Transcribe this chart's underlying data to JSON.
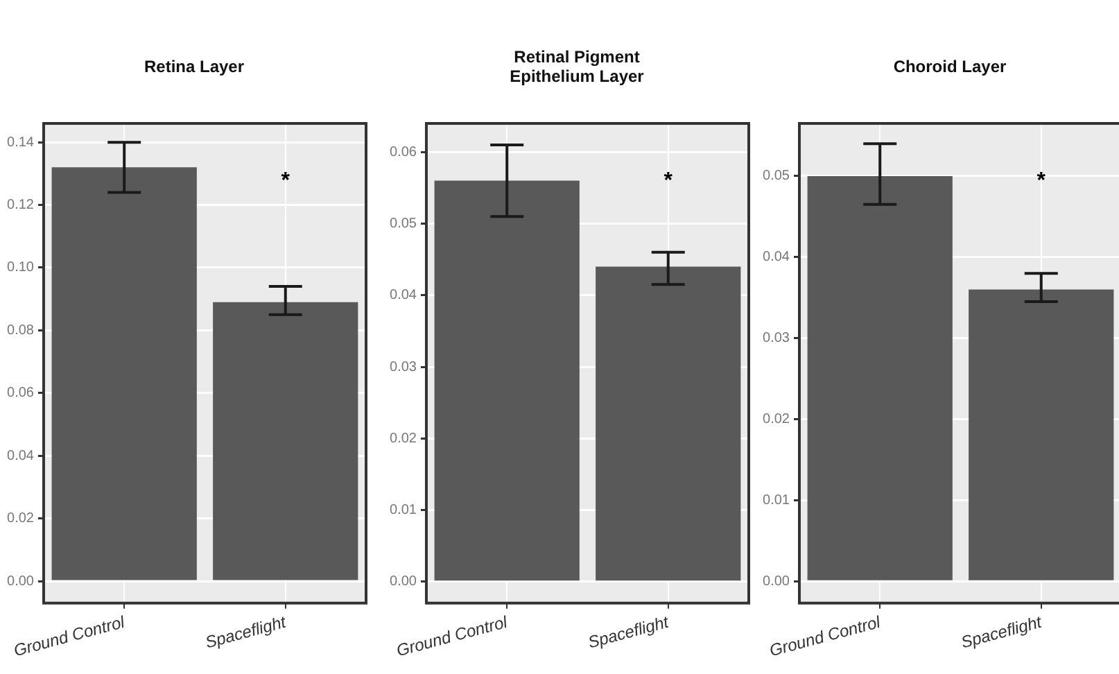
{
  "chart_data": [
    {
      "type": "bar",
      "title": "Retina Layer",
      "categories": [
        "Ground Control",
        "Spaceflight"
      ],
      "values": [
        0.132,
        0.089
      ],
      "color": "#595959",
      "errors": [
        [
          0.124,
          0.14
        ],
        [
          0.085,
          0.094
        ]
      ],
      "ylim": [
        -0.007,
        0.146
      ],
      "yticks": [
        {
          "value": 0,
          "label": "0.00"
        },
        {
          "value": 0.02,
          "label": "0.02"
        },
        {
          "value": 0.04,
          "label": "0.04"
        },
        {
          "value": 0.06,
          "label": "0.06"
        },
        {
          "value": 0.08,
          "label": "0.08"
        },
        {
          "value": 0.1,
          "label": "0.10"
        },
        {
          "value": 0.12,
          "label": "0.12"
        },
        {
          "value": 0.14,
          "label": "0.14"
        }
      ],
      "grid": true,
      "annotations": [
        "*"
      ]
    },
    {
      "type": "bar",
      "title": "Retinal Pigment Epithelium Layer",
      "categories": [
        "Ground Control",
        "Spaceflight"
      ],
      "values": [
        0.056,
        0.044
      ],
      "color": "#595959",
      "errors": [
        [
          0.051,
          0.061
        ],
        [
          0.0415,
          0.046
        ]
      ],
      "ylim": [
        -0.003,
        0.064
      ],
      "yticks": [
        {
          "value": 0,
          "label": "0.00"
        },
        {
          "value": 0.01,
          "label": "0.01"
        },
        {
          "value": 0.02,
          "label": "0.02"
        },
        {
          "value": 0.03,
          "label": "0.03"
        },
        {
          "value": 0.04,
          "label": "0.04"
        },
        {
          "value": 0.05,
          "label": "0.05"
        },
        {
          "value": 0.06,
          "label": "0.06"
        }
      ],
      "grid": true,
      "annotations": [
        "*"
      ]
    },
    {
      "type": "bar",
      "title": "Choroid Layer",
      "categories": [
        "Ground Control",
        "Spaceflight"
      ],
      "values": [
        0.05,
        0.036
      ],
      "color": "#595959",
      "errors": [
        [
          0.0465,
          0.054
        ],
        [
          0.0345,
          0.038
        ]
      ],
      "ylim": [
        -0.0027,
        0.0565
      ],
      "yticks": [
        {
          "value": 0,
          "label": "0.00"
        },
        {
          "value": 0.01,
          "label": "0.01"
        },
        {
          "value": 0.02,
          "label": "0.02"
        },
        {
          "value": 0.03,
          "label": "0.03"
        },
        {
          "value": 0.04,
          "label": "0.04"
        },
        {
          "value": 0.05,
          "label": "0.05"
        }
      ],
      "grid": true,
      "annotations": [
        "*"
      ]
    }
  ]
}
